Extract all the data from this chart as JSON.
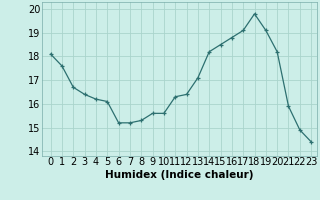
{
  "x": [
    0,
    1,
    2,
    3,
    4,
    5,
    6,
    7,
    8,
    9,
    10,
    11,
    12,
    13,
    14,
    15,
    16,
    17,
    18,
    19,
    20,
    21,
    22,
    23
  ],
  "y": [
    18.1,
    17.6,
    16.7,
    16.4,
    16.2,
    16.1,
    15.2,
    15.2,
    15.3,
    15.6,
    15.6,
    16.3,
    16.4,
    17.1,
    18.2,
    18.5,
    18.8,
    19.1,
    19.8,
    19.1,
    18.2,
    15.9,
    14.9,
    14.4
  ],
  "line_color": "#2d7070",
  "marker": "+",
  "marker_color": "#2d7070",
  "bg_color": "#cceee8",
  "grid_color": "#aad4cc",
  "xlabel": "Humidex (Indice chaleur)",
  "ylabel_ticks": [
    14,
    15,
    16,
    17,
    18,
    19,
    20
  ],
  "xtick_labels": [
    "0",
    "1",
    "2",
    "3",
    "4",
    "5",
    "6",
    "7",
    "8",
    "9",
    "10",
    "11",
    "12",
    "13",
    "14",
    "15",
    "16",
    "17",
    "18",
    "19",
    "20",
    "21",
    "22",
    "23"
  ],
  "ylim": [
    13.8,
    20.3
  ],
  "xlim": [
    -0.8,
    23.5
  ],
  "xlabel_fontsize": 7.5,
  "tick_fontsize": 7
}
